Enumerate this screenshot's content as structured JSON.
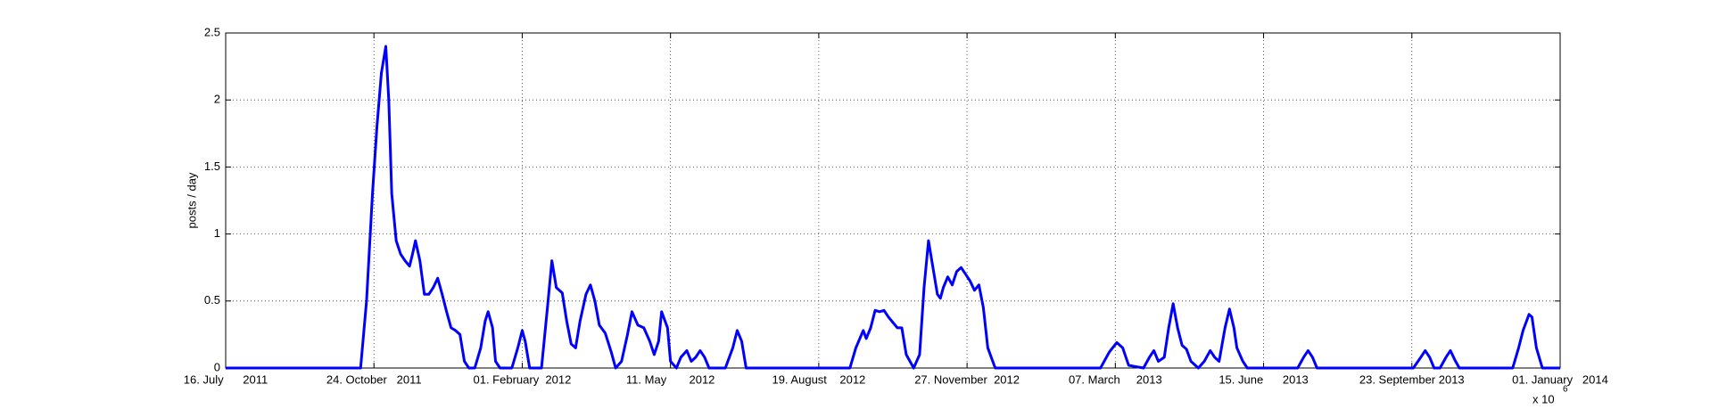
{
  "chart_data": {
    "type": "line",
    "ylabel": "posts / day",
    "x_exponent": {
      "base": "x 10",
      "power": "6"
    },
    "xlim": [
      734700,
      735600
    ],
    "ylim": [
      0,
      2.5
    ],
    "xticks": [
      {
        "value": 734700,
        "label": "16. July      2011"
      },
      {
        "value": 734800,
        "label": "24. October   2011"
      },
      {
        "value": 734900,
        "label": "01. February  2012"
      },
      {
        "value": 735000,
        "label": "11. May       2012"
      },
      {
        "value": 735100,
        "label": "19. August    2012"
      },
      {
        "value": 735200,
        "label": "27. November  2012"
      },
      {
        "value": 735300,
        "label": "07. March     2013"
      },
      {
        "value": 735400,
        "label": "15. June      2013"
      },
      {
        "value": 735500,
        "label": "23. September 2013"
      },
      {
        "value": 735600,
        "label": "01. January   2014"
      }
    ],
    "yticks": [
      0,
      0.5,
      1,
      1.5,
      2,
      2.5
    ],
    "grid": true,
    "x": [
      734700,
      734791,
      734795,
      734799,
      734802,
      734805,
      734808,
      734810,
      734812,
      734815,
      734818,
      734821,
      734824,
      734826,
      734828,
      734831,
      734834,
      734837,
      734840,
      734843,
      734846,
      734849,
      734852,
      734855,
      734858,
      734861,
      734864,
      734868,
      734872,
      734875,
      734877,
      734880,
      734882,
      734885,
      734893,
      734897,
      734900,
      734902,
      734905,
      734913,
      734917,
      734920,
      734923,
      734927,
      734930,
      734933,
      734936,
      734939,
      734943,
      734946,
      734949,
      734952,
      734956,
      734960,
      734963,
      734967,
      734971,
      734974,
      734978,
      734982,
      734986,
      734989,
      734992,
      734994,
      734998,
      735000,
      735004,
      735007,
      735011,
      735014,
      735017,
      735020,
      735023,
      735026,
      735037,
      735042,
      735045,
      735048,
      735051,
      735121,
      735125,
      735130,
      735132,
      735135,
      735138,
      735141,
      735144,
      735147,
      735150,
      735153,
      735156,
      735159,
      735164,
      735168,
      735171,
      735174,
      735177,
      735180,
      735182,
      735184,
      735187,
      735190,
      735193,
      735196,
      735199,
      735202,
      735205,
      735208,
      735211,
      735214,
      735219,
      735290,
      735296,
      735301,
      735305,
      735309,
      735319,
      735323,
      735326,
      735329,
      735333,
      735336,
      735339,
      735342,
      735345,
      735348,
      735351,
      735356,
      735360,
      735364,
      735367,
      735370,
      735374,
      735377,
      735380,
      735382,
      735386,
      735389,
      735423,
      735427,
      735430,
      735433,
      735436,
      735501,
      735506,
      735509,
      735512,
      735515,
      735519,
      735523,
      735526,
      735529,
      735532,
      735568,
      735572,
      735575,
      735579,
      735581,
      735584,
      735588,
      735600
    ],
    "series": [
      {
        "color": "#0000ff",
        "values": [
          0,
          0,
          0.5,
          1.3,
          1.8,
          2.2,
          2.4,
          2.0,
          1.3,
          0.95,
          0.85,
          0.8,
          0.76,
          0.85,
          0.95,
          0.8,
          0.55,
          0.55,
          0.6,
          0.67,
          0.55,
          0.42,
          0.3,
          0.28,
          0.25,
          0.05,
          0,
          0,
          0.15,
          0.35,
          0.42,
          0.3,
          0.05,
          0,
          0,
          0.15,
          0.28,
          0.2,
          0,
          0,
          0.45,
          0.8,
          0.6,
          0.56,
          0.35,
          0.18,
          0.15,
          0.35,
          0.55,
          0.62,
          0.5,
          0.32,
          0.26,
          0.12,
          0,
          0.05,
          0.25,
          0.42,
          0.32,
          0.3,
          0.2,
          0.1,
          0.2,
          0.42,
          0.3,
          0.05,
          0,
          0.08,
          0.13,
          0.05,
          0.08,
          0.13,
          0.08,
          0,
          0,
          0.15,
          0.28,
          0.2,
          0,
          0,
          0.15,
          0.28,
          0.22,
          0.3,
          0.43,
          0.42,
          0.43,
          0.38,
          0.34,
          0.3,
          0.3,
          0.1,
          0,
          0.1,
          0.6,
          0.95,
          0.75,
          0.55,
          0.52,
          0.6,
          0.68,
          0.62,
          0.72,
          0.75,
          0.7,
          0.65,
          0.58,
          0.62,
          0.45,
          0.15,
          0,
          0,
          0.12,
          0.19,
          0.15,
          0.02,
          0,
          0.08,
          0.13,
          0.05,
          0.08,
          0.3,
          0.48,
          0.3,
          0.17,
          0.14,
          0.05,
          0,
          0.05,
          0.13,
          0.08,
          0.05,
          0.3,
          0.44,
          0.3,
          0.15,
          0.05,
          0,
          0,
          0.08,
          0.13,
          0.08,
          0,
          0,
          0.08,
          0.13,
          0.08,
          0,
          0,
          0.08,
          0.13,
          0.06,
          0,
          0,
          0.15,
          0.28,
          0.4,
          0.38,
          0.15,
          0,
          0
        ]
      }
    ]
  }
}
